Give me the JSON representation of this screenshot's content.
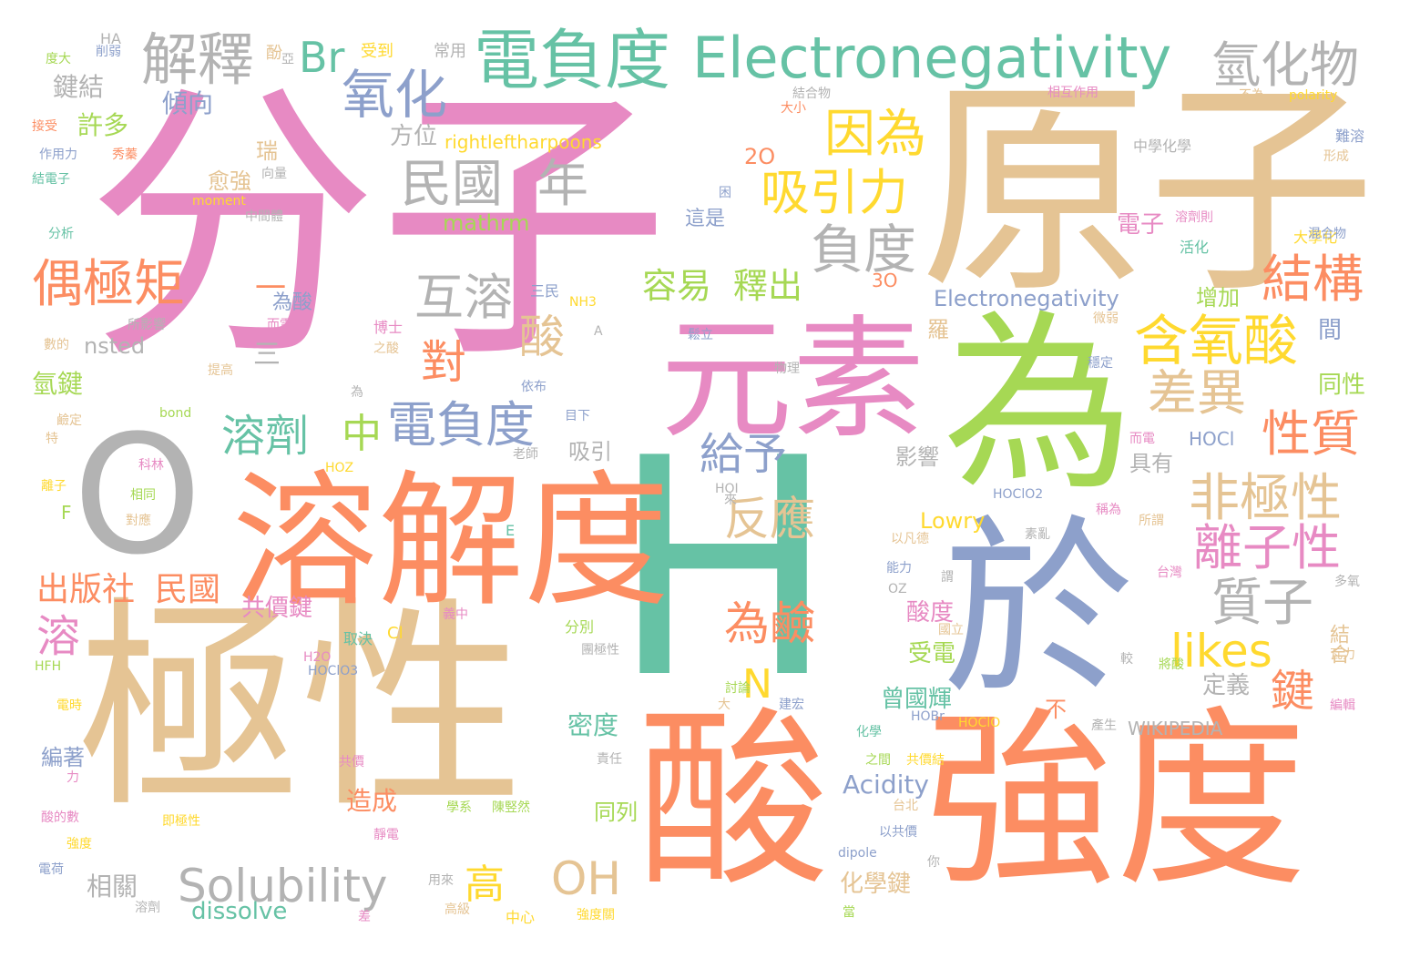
{
  "palette": {
    "pink": "#e78ac3",
    "tan": "#e5c494",
    "orange": "#fc8d62",
    "teal": "#66c2a5",
    "blue": "#8da0cb",
    "green": "#a6d854",
    "yellow": "#ffd92f",
    "gray": "#b3b3b3"
  },
  "words": [
    {
      "text": "分子",
      "color": "pink"
    },
    {
      "text": "原子",
      "color": "tan"
    },
    {
      "text": "極性",
      "color": "tan"
    },
    {
      "text": "H",
      "color": "teal"
    },
    {
      "text": "為",
      "color": "green"
    },
    {
      "text": "於",
      "color": "blue"
    },
    {
      "text": "酸",
      "color": "orange"
    },
    {
      "text": "強度",
      "color": "orange"
    },
    {
      "text": "元素",
      "color": "pink"
    },
    {
      "text": "溶解度",
      "color": "orange"
    },
    {
      "text": "O",
      "color": "gray"
    },
    {
      "text": "電負度",
      "color": "teal"
    },
    {
      "text": "Electronegativity",
      "color": "teal"
    },
    {
      "text": "氫化物",
      "color": "gray"
    },
    {
      "text": "解釋",
      "color": "gray"
    },
    {
      "text": "Br",
      "color": "teal"
    },
    {
      "text": "氧化",
      "color": "blue"
    },
    {
      "text": "因為",
      "color": "yellow"
    },
    {
      "text": "吸引力",
      "color": "yellow"
    },
    {
      "text": "民國",
      "color": "gray"
    },
    {
      "text": "年",
      "color": "gray"
    },
    {
      "text": "負度",
      "color": "gray"
    },
    {
      "text": "互溶",
      "color": "gray"
    },
    {
      "text": "偶極矩",
      "color": "orange"
    },
    {
      "text": "結構",
      "color": "orange"
    },
    {
      "text": "含氧酸",
      "color": "yellow"
    },
    {
      "text": "容易",
      "color": "green"
    },
    {
      "text": "釋出",
      "color": "green"
    },
    {
      "text": "酸",
      "color": "tan"
    },
    {
      "text": "對",
      "color": "orange"
    },
    {
      "text": "電負度",
      "color": "blue"
    },
    {
      "text": "中",
      "color": "green"
    },
    {
      "text": "溶劑",
      "color": "teal"
    },
    {
      "text": "差異",
      "color": "tan"
    },
    {
      "text": "性質",
      "color": "orange"
    },
    {
      "text": "給予",
      "color": "blue"
    },
    {
      "text": "非極性",
      "color": "tan"
    },
    {
      "text": "反應",
      "color": "tan"
    },
    {
      "text": "離子性",
      "color": "pink"
    },
    {
      "text": "質子",
      "color": "gray"
    },
    {
      "text": "出版社",
      "color": "orange"
    },
    {
      "text": "民國",
      "color": "orange"
    },
    {
      "text": "溶",
      "color": "pink"
    },
    {
      "text": "為鹼",
      "color": "orange"
    },
    {
      "text": "likes",
      "color": "yellow"
    },
    {
      "text": "N",
      "color": "yellow"
    },
    {
      "text": "鍵",
      "color": "orange"
    },
    {
      "text": "Solubility",
      "color": "gray"
    },
    {
      "text": "高",
      "color": "yellow"
    },
    {
      "text": "OH",
      "color": "tan"
    },
    {
      "text": "Acidity",
      "color": "blue"
    },
    {
      "text": "dissolve",
      "color": "teal"
    },
    {
      "text": "Electronegativity",
      "color": "blue"
    },
    {
      "text": "rightleftharpoons",
      "color": "yellow"
    },
    {
      "text": "mathrm",
      "color": "green"
    },
    {
      "text": "Lowry",
      "color": "yellow"
    },
    {
      "text": "nsted",
      "color": "gray"
    },
    {
      "text": "2O",
      "color": "orange"
    },
    {
      "text": "3O",
      "color": "orange"
    },
    {
      "text": "一",
      "color": "orange"
    },
    {
      "text": "三",
      "color": "gray"
    },
    {
      "text": "許多",
      "color": "green"
    },
    {
      "text": "傾向",
      "color": "blue"
    },
    {
      "text": "鍵結",
      "color": "gray"
    },
    {
      "text": "方位",
      "color": "gray"
    },
    {
      "text": "瑞",
      "color": "tan"
    },
    {
      "text": "愈強",
      "color": "tan"
    },
    {
      "text": "氫鍵",
      "color": "green"
    },
    {
      "text": "吸引",
      "color": "gray"
    },
    {
      "text": "這是",
      "color": "blue"
    },
    {
      "text": "為酸",
      "color": "blue"
    },
    {
      "text": "電子",
      "color": "pink"
    },
    {
      "text": "增加",
      "color": "green"
    },
    {
      "text": "間",
      "color": "blue"
    },
    {
      "text": "同性",
      "color": "green"
    },
    {
      "text": "具有",
      "color": "gray"
    },
    {
      "text": "影響",
      "color": "gray"
    },
    {
      "text": "共價鍵",
      "color": "pink"
    },
    {
      "text": "酸度",
      "color": "pink"
    },
    {
      "text": "受電",
      "color": "green"
    },
    {
      "text": "曾國輝",
      "color": "teal"
    },
    {
      "text": "密度",
      "color": "teal"
    },
    {
      "text": "造成",
      "color": "orange"
    },
    {
      "text": "同列",
      "color": "green"
    },
    {
      "text": "化學鍵",
      "color": "tan"
    },
    {
      "text": "相關",
      "color": "gray"
    },
    {
      "text": "編著",
      "color": "blue"
    },
    {
      "text": "定義",
      "color": "gray"
    },
    {
      "text": "結合",
      "color": "tan"
    },
    {
      "text": "不",
      "color": "orange"
    },
    {
      "text": "WIKIPEDIA",
      "color": "gray"
    },
    {
      "text": "F",
      "color": "green"
    },
    {
      "text": "HOCl",
      "color": "blue"
    },
    {
      "text": "羅",
      "color": "tan"
    },
    {
      "text": "HA",
      "color": "gray"
    },
    {
      "text": "常用",
      "color": "gray"
    },
    {
      "text": "受到",
      "color": "yellow"
    },
    {
      "text": "結合物",
      "color": "gray"
    },
    {
      "text": "相互作用",
      "color": "pink"
    },
    {
      "text": "不為",
      "color": "tan"
    },
    {
      "text": "polarity",
      "color": "yellow"
    },
    {
      "text": "中學化學",
      "color": "gray"
    },
    {
      "text": "難溶",
      "color": "blue"
    },
    {
      "text": "形成",
      "color": "tan"
    },
    {
      "text": "大學化",
      "color": "yellow"
    },
    {
      "text": "混合物",
      "color": "blue"
    },
    {
      "text": "活化",
      "color": "teal"
    },
    {
      "text": "溶劑則",
      "color": "pink"
    },
    {
      "text": "微弱",
      "color": "tan"
    },
    {
      "text": "穩定",
      "color": "blue"
    },
    {
      "text": "而電",
      "color": "pink"
    },
    {
      "text": "稱為",
      "color": "pink"
    },
    {
      "text": "所謂",
      "color": "tan"
    },
    {
      "text": "台灣",
      "color": "pink"
    },
    {
      "text": "多氧",
      "color": "gray"
    },
    {
      "text": "瓦力",
      "color": "tan"
    },
    {
      "text": "將酸",
      "color": "green"
    },
    {
      "text": "產生",
      "color": "gray"
    },
    {
      "text": "編輯",
      "color": "pink"
    },
    {
      "text": "HOClO2",
      "color": "blue"
    },
    {
      "text": "HOI",
      "color": "gray"
    },
    {
      "text": "HOZ",
      "color": "yellow"
    },
    {
      "text": "H2O",
      "color": "pink"
    },
    {
      "text": "HOClO3",
      "color": "blue"
    },
    {
      "text": "HFH",
      "color": "green"
    },
    {
      "text": "HOBr",
      "color": "blue"
    },
    {
      "text": "HOClO",
      "color": "yellow"
    },
    {
      "text": "NH3",
      "color": "yellow"
    },
    {
      "text": "Cl",
      "color": "yellow"
    },
    {
      "text": "E",
      "color": "teal"
    },
    {
      "text": "A",
      "color": "gray"
    },
    {
      "text": "OZ",
      "color": "gray"
    },
    {
      "text": "moment",
      "color": "yellow"
    },
    {
      "text": "bond",
      "color": "green"
    },
    {
      "text": "dipole",
      "color": "blue"
    },
    {
      "text": "中間體",
      "color": "gray"
    },
    {
      "text": "向量",
      "color": "gray"
    },
    {
      "text": "三民",
      "color": "blue"
    },
    {
      "text": "博士",
      "color": "pink"
    },
    {
      "text": "之酸",
      "color": "tan"
    },
    {
      "text": "鬆立",
      "color": "blue"
    },
    {
      "text": "依布",
      "color": "blue"
    },
    {
      "text": "目下",
      "color": "blue"
    },
    {
      "text": "老師",
      "color": "gray"
    },
    {
      "text": "物理",
      "color": "gray"
    },
    {
      "text": "素亂",
      "color": "gray"
    },
    {
      "text": "以凡德",
      "color": "tan"
    },
    {
      "text": "能力",
      "color": "blue"
    },
    {
      "text": "謂",
      "color": "gray"
    },
    {
      "text": "國立",
      "color": "tan"
    },
    {
      "text": "較",
      "color": "gray"
    },
    {
      "text": "分別",
      "color": "green"
    },
    {
      "text": "取決",
      "color": "teal"
    },
    {
      "text": "義中",
      "color": "pink"
    },
    {
      "text": "團極性",
      "color": "gray"
    },
    {
      "text": "討論",
      "color": "green"
    },
    {
      "text": "建宏",
      "color": "blue"
    },
    {
      "text": "大",
      "color": "tan"
    },
    {
      "text": "化學",
      "color": "teal"
    },
    {
      "text": "之間",
      "color": "green"
    },
    {
      "text": "共價結",
      "color": "yellow"
    },
    {
      "text": "共價",
      "color": "pink"
    },
    {
      "text": "責任",
      "color": "gray"
    },
    {
      "text": "學系",
      "color": "green"
    },
    {
      "text": "陳竪然",
      "color": "green"
    },
    {
      "text": "台北",
      "color": "tan"
    },
    {
      "text": "以共價",
      "color": "blue"
    },
    {
      "text": "你",
      "color": "gray"
    },
    {
      "text": "即極性",
      "color": "yellow"
    },
    {
      "text": "靜電",
      "color": "pink"
    },
    {
      "text": "用來",
      "color": "gray"
    },
    {
      "text": "差",
      "color": "pink"
    },
    {
      "text": "中心",
      "color": "yellow"
    },
    {
      "text": "高級",
      "color": "tan"
    },
    {
      "text": "強度關",
      "color": "yellow"
    },
    {
      "text": "當",
      "color": "green"
    },
    {
      "text": "溶劑",
      "color": "gray"
    },
    {
      "text": "電荷",
      "color": "blue"
    },
    {
      "text": "強度",
      "color": "yellow"
    },
    {
      "text": "酸的數",
      "color": "pink"
    },
    {
      "text": "力",
      "color": "pink"
    },
    {
      "text": "電時",
      "color": "yellow"
    },
    {
      "text": "相同",
      "color": "green"
    },
    {
      "text": "對應",
      "color": "tan"
    },
    {
      "text": "科林",
      "color": "pink"
    },
    {
      "text": "離子",
      "color": "yellow"
    },
    {
      "text": "特",
      "color": "tan"
    },
    {
      "text": "鹼定",
      "color": "tan"
    },
    {
      "text": "數的",
      "color": "tan"
    },
    {
      "text": "分析",
      "color": "teal"
    },
    {
      "text": "接受",
      "color": "orange"
    },
    {
      "text": "作用力",
      "color": "blue"
    },
    {
      "text": "結電子",
      "color": "teal"
    },
    {
      "text": "秀蓁",
      "color": "orange"
    },
    {
      "text": "度大",
      "color": "green"
    },
    {
      "text": "削弱",
      "color": "blue"
    },
    {
      "text": "酚",
      "color": "tan"
    },
    {
      "text": "所影響",
      "color": "gray"
    },
    {
      "text": "而電",
      "color": "pink"
    },
    {
      "text": "提高",
      "color": "tan"
    },
    {
      "text": "大小",
      "color": "orange"
    },
    {
      "text": "困",
      "color": "blue"
    },
    {
      "text": "來",
      "color": "gray"
    },
    {
      "text": "為",
      "color": "gray"
    },
    {
      "text": "亞",
      "color": "gray"
    }
  ]
}
